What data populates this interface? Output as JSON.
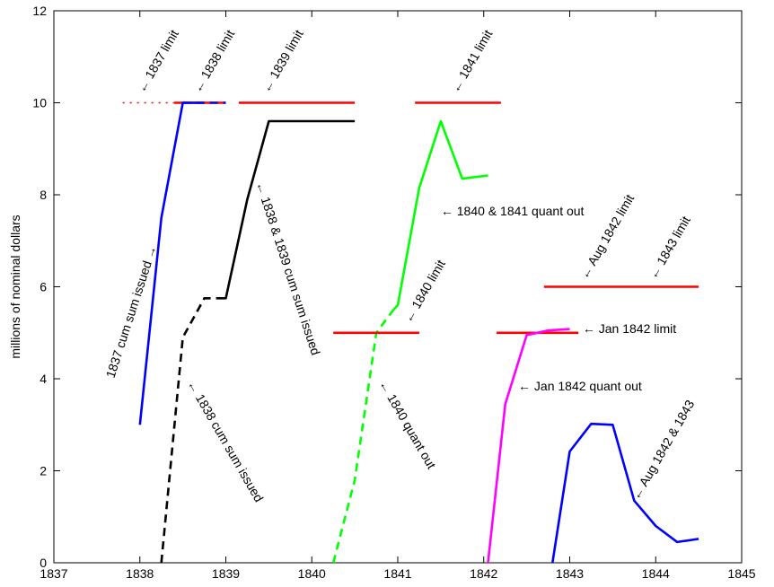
{
  "chart_data": {
    "type": "line",
    "title": "",
    "xlabel": "",
    "ylabel": "millions of nominal dollars",
    "xlim": [
      1837,
      1845
    ],
    "ylim": [
      0,
      12
    ],
    "xticks": [
      "1837",
      "1838",
      "1839",
      "1840",
      "1841",
      "1842",
      "1843",
      "1844",
      "1845"
    ],
    "yticks": [
      "0",
      "2",
      "4",
      "6",
      "8",
      "10",
      "12"
    ],
    "grid": false,
    "series": [
      {
        "color": "#ff0000",
        "style": "dotted",
        "points": [
          [
            1837.8,
            10
          ],
          [
            1838.4,
            10
          ]
        ]
      },
      {
        "color": "#ff0000",
        "style": "solid",
        "points": [
          [
            1838.4,
            10
          ],
          [
            1839.0,
            10
          ]
        ]
      },
      {
        "color": "#0000ff",
        "style": "dashed",
        "points": [
          [
            1838.5,
            10
          ],
          [
            1839.0,
            10
          ]
        ]
      },
      {
        "color": "#0000ff",
        "style": "solid",
        "points": [
          [
            1838.0,
            3.0
          ],
          [
            1838.25,
            7.5
          ],
          [
            1838.5,
            10
          ],
          [
            1838.75,
            10
          ]
        ]
      },
      {
        "color": "#ff0000",
        "style": "solid",
        "points": [
          [
            1839.15,
            10
          ],
          [
            1840.5,
            10
          ]
        ]
      },
      {
        "color": "#000000",
        "style": "dashed",
        "points": [
          [
            1838.25,
            0
          ],
          [
            1838.5,
            4.9
          ],
          [
            1838.75,
            5.75
          ],
          [
            1838.9,
            5.75
          ]
        ]
      },
      {
        "color": "#000000",
        "style": "solid",
        "points": [
          [
            1838.9,
            5.75
          ],
          [
            1839.0,
            5.75
          ],
          [
            1839.25,
            7.9
          ],
          [
            1839.5,
            9.6
          ],
          [
            1840.5,
            9.6
          ]
        ]
      },
      {
        "color": "#ff0000",
        "style": "solid",
        "points": [
          [
            1841.2,
            10
          ],
          [
            1842.2,
            10
          ]
        ]
      },
      {
        "color": "#00ff00",
        "style": "dashed",
        "points": [
          [
            1840.25,
            0
          ],
          [
            1840.5,
            1.8
          ],
          [
            1840.75,
            5.0
          ],
          [
            1840.95,
            5.5
          ]
        ]
      },
      {
        "color": "#00ff00",
        "style": "solid",
        "points": [
          [
            1840.95,
            5.5
          ],
          [
            1841.0,
            5.6
          ],
          [
            1841.25,
            8.15
          ],
          [
            1841.5,
            9.6
          ],
          [
            1841.75,
            8.35
          ],
          [
            1842.05,
            8.42
          ]
        ]
      },
      {
        "color": "#ff0000",
        "style": "solid",
        "points": [
          [
            1840.25,
            5
          ],
          [
            1841.25,
            5
          ]
        ]
      },
      {
        "color": "#ff0000",
        "style": "solid",
        "points": [
          [
            1842.15,
            5
          ],
          [
            1843.1,
            5
          ]
        ]
      },
      {
        "color": "#ff00ff",
        "style": "solid",
        "points": [
          [
            1842.05,
            0
          ],
          [
            1842.25,
            3.45
          ],
          [
            1842.5,
            4.95
          ],
          [
            1842.75,
            5.05
          ],
          [
            1843.0,
            5.08
          ]
        ]
      },
      {
        "color": "#ff0000",
        "style": "solid",
        "points": [
          [
            1842.7,
            6
          ],
          [
            1844.5,
            6
          ]
        ]
      },
      {
        "color": "#0000ff",
        "style": "solid",
        "points": [
          [
            1842.8,
            0
          ],
          [
            1843.0,
            2.42
          ],
          [
            1843.25,
            3.02
          ],
          [
            1843.5,
            3.0
          ],
          [
            1843.75,
            1.35
          ],
          [
            1844.0,
            0.8
          ],
          [
            1844.25,
            0.45
          ],
          [
            1844.5,
            0.52
          ]
        ]
      }
    ],
    "annotations": [
      {
        "text": "← 1837 limit",
        "x": 1838.05,
        "y": 10.2,
        "rotate": -60
      },
      {
        "text": "← 1838 limit",
        "x": 1838.7,
        "y": 10.2,
        "rotate": -60
      },
      {
        "text": "← 1839 limit",
        "x": 1839.5,
        "y": 10.2,
        "rotate": -60
      },
      {
        "text": "← 1841 limit",
        "x": 1841.7,
        "y": 10.2,
        "rotate": -60
      },
      {
        "text": "1837 cum sum issued →",
        "x": 1837.7,
        "y": 4.0,
        "rotate": -72
      },
      {
        "text": "← 1838 & 1839 cum sum issued",
        "x": 1839.35,
        "y": 8.25,
        "rotate": 72
      },
      {
        "text": "← 1840 & 1841 quant out",
        "x": 1841.5,
        "y": 7.55,
        "rotate": 0
      },
      {
        "text": "← 1840 limit",
        "x": 1841.15,
        "y": 5.2,
        "rotate": -60
      },
      {
        "text": "← Jan 1842 limit",
        "x": 1843.15,
        "y": 5.0,
        "rotate": 0
      },
      {
        "text": "← Aug 1842 limit",
        "x": 1843.2,
        "y": 6.15,
        "rotate": -60
      },
      {
        "text": "← 1843 limit",
        "x": 1844.0,
        "y": 6.15,
        "rotate": -60
      },
      {
        "text": "← 1838 cum sum issued",
        "x": 1838.55,
        "y": 3.9,
        "rotate": 60
      },
      {
        "text": "← 1840 quant out",
        "x": 1840.78,
        "y": 3.9,
        "rotate": 60
      },
      {
        "text": "← Jan 1842 quant out",
        "x": 1842.4,
        "y": 3.75,
        "rotate": 0
      },
      {
        "text": "← Aug 1842 & 1843",
        "x": 1843.8,
        "y": 1.35,
        "rotate": -60
      }
    ]
  }
}
